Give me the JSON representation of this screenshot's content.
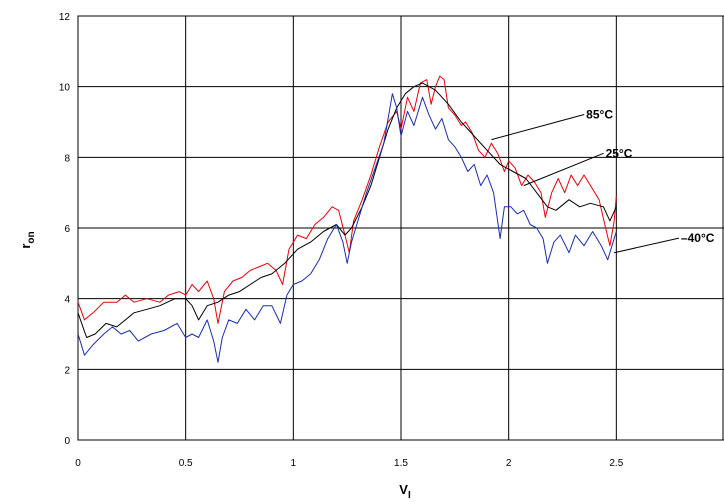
{
  "chart_data": {
    "type": "line",
    "title": "",
    "xlabel": "V",
    "xlabel_sub": "I",
    "ylabel": "r",
    "ylabel_sub": "on",
    "xlim": [
      0,
      3
    ],
    "ylim": [
      0,
      12
    ],
    "xticks": [
      {
        "v": 0,
        "label": "0"
      },
      {
        "v": 0.5,
        "label": "0.5"
      },
      {
        "v": 1,
        "label": "1"
      },
      {
        "v": 1.5,
        "label": "1.5"
      },
      {
        "v": 2,
        "label": "2"
      },
      {
        "v": 2.5,
        "label": "2.5"
      }
    ],
    "yticks": [
      {
        "v": 0,
        "label": "0"
      },
      {
        "v": 2,
        "label": "2"
      },
      {
        "v": 4,
        "label": "4"
      },
      {
        "v": 6,
        "label": "6"
      },
      {
        "v": 8,
        "label": "8"
      },
      {
        "v": 10,
        "label": "10"
      },
      {
        "v": 12,
        "label": "12"
      }
    ],
    "grid": true,
    "legend": "none",
    "series": [
      {
        "name": "85°C",
        "color": "#e8000b",
        "points": [
          [
            0,
            3.9
          ],
          [
            0.03,
            3.4
          ],
          [
            0.07,
            3.6
          ],
          [
            0.12,
            3.9
          ],
          [
            0.18,
            3.9
          ],
          [
            0.22,
            4.1
          ],
          [
            0.26,
            3.9
          ],
          [
            0.32,
            4.0
          ],
          [
            0.38,
            3.9
          ],
          [
            0.42,
            4.1
          ],
          [
            0.47,
            4.2
          ],
          [
            0.5,
            4.1
          ],
          [
            0.53,
            4.4
          ],
          [
            0.56,
            4.2
          ],
          [
            0.6,
            4.5
          ],
          [
            0.63,
            4.0
          ],
          [
            0.65,
            3.3
          ],
          [
            0.68,
            4.2
          ],
          [
            0.72,
            4.5
          ],
          [
            0.76,
            4.6
          ],
          [
            0.8,
            4.8
          ],
          [
            0.84,
            4.9
          ],
          [
            0.88,
            5.0
          ],
          [
            0.92,
            4.8
          ],
          [
            0.95,
            4.4
          ],
          [
            0.98,
            5.4
          ],
          [
            1.02,
            5.8
          ],
          [
            1.06,
            5.7
          ],
          [
            1.1,
            6.1
          ],
          [
            1.14,
            6.3
          ],
          [
            1.18,
            6.6
          ],
          [
            1.21,
            6.5
          ],
          [
            1.24,
            5.8
          ],
          [
            1.26,
            5.3
          ],
          [
            1.28,
            6.2
          ],
          [
            1.32,
            6.8
          ],
          [
            1.36,
            7.5
          ],
          [
            1.4,
            8.3
          ],
          [
            1.44,
            9.0
          ],
          [
            1.48,
            9.3
          ],
          [
            1.5,
            8.8
          ],
          [
            1.53,
            9.7
          ],
          [
            1.56,
            9.3
          ],
          [
            1.59,
            10.1
          ],
          [
            1.62,
            10.2
          ],
          [
            1.64,
            9.5
          ],
          [
            1.66,
            10.0
          ],
          [
            1.68,
            10.3
          ],
          [
            1.7,
            10.2
          ],
          [
            1.72,
            9.4
          ],
          [
            1.75,
            9.2
          ],
          [
            1.78,
            8.9
          ],
          [
            1.8,
            9.0
          ],
          [
            1.83,
            8.7
          ],
          [
            1.86,
            8.2
          ],
          [
            1.89,
            8.0
          ],
          [
            1.92,
            8.4
          ],
          [
            1.95,
            8.1
          ],
          [
            1.98,
            7.6
          ],
          [
            2.0,
            7.9
          ],
          [
            2.03,
            7.7
          ],
          [
            2.06,
            7.2
          ],
          [
            2.09,
            7.5
          ],
          [
            2.12,
            7.3
          ],
          [
            2.15,
            7.0
          ],
          [
            2.17,
            6.3
          ],
          [
            2.2,
            7.0
          ],
          [
            2.23,
            7.4
          ],
          [
            2.26,
            7.0
          ],
          [
            2.29,
            7.5
          ],
          [
            2.32,
            7.2
          ],
          [
            2.35,
            7.5
          ],
          [
            2.38,
            7.2
          ],
          [
            2.42,
            6.8
          ],
          [
            2.45,
            6.0
          ],
          [
            2.47,
            5.5
          ],
          [
            2.49,
            6.2
          ],
          [
            2.5,
            6.9
          ]
        ]
      },
      {
        "name": "25°C",
        "color": "#000000",
        "points": [
          [
            0,
            3.6
          ],
          [
            0.04,
            2.9
          ],
          [
            0.08,
            3.0
          ],
          [
            0.13,
            3.3
          ],
          [
            0.18,
            3.2
          ],
          [
            0.22,
            3.4
          ],
          [
            0.26,
            3.6
          ],
          [
            0.32,
            3.7
          ],
          [
            0.38,
            3.8
          ],
          [
            0.45,
            4.0
          ],
          [
            0.5,
            4.0
          ],
          [
            0.53,
            3.8
          ],
          [
            0.56,
            3.4
          ],
          [
            0.6,
            3.8
          ],
          [
            0.65,
            3.9
          ],
          [
            0.7,
            4.1
          ],
          [
            0.75,
            4.2
          ],
          [
            0.8,
            4.4
          ],
          [
            0.85,
            4.6
          ],
          [
            0.9,
            4.7
          ],
          [
            0.96,
            5.0
          ],
          [
            1.02,
            5.4
          ],
          [
            1.08,
            5.6
          ],
          [
            1.14,
            5.9
          ],
          [
            1.2,
            6.1
          ],
          [
            1.24,
            5.8
          ],
          [
            1.27,
            6.0
          ],
          [
            1.32,
            6.6
          ],
          [
            1.36,
            7.2
          ],
          [
            1.4,
            8.0
          ],
          [
            1.44,
            8.8
          ],
          [
            1.48,
            9.4
          ],
          [
            1.52,
            9.8
          ],
          [
            1.56,
            10.0
          ],
          [
            1.6,
            10.1
          ],
          [
            1.66,
            9.9
          ],
          [
            1.72,
            9.5
          ],
          [
            1.78,
            9.0
          ],
          [
            1.84,
            8.6
          ],
          [
            1.9,
            8.2
          ],
          [
            1.96,
            7.8
          ],
          [
            2.02,
            7.6
          ],
          [
            2.08,
            7.4
          ],
          [
            2.13,
            7.0
          ],
          [
            2.18,
            6.6
          ],
          [
            2.22,
            6.5
          ],
          [
            2.28,
            6.8
          ],
          [
            2.33,
            6.6
          ],
          [
            2.38,
            6.7
          ],
          [
            2.44,
            6.6
          ],
          [
            2.47,
            6.2
          ],
          [
            2.5,
            6.6
          ]
        ]
      },
      {
        "name": "–40°C",
        "color": "#1a2ea8",
        "points": [
          [
            0,
            3.0
          ],
          [
            0.03,
            2.4
          ],
          [
            0.07,
            2.7
          ],
          [
            0.12,
            3.0
          ],
          [
            0.16,
            3.2
          ],
          [
            0.2,
            3.0
          ],
          [
            0.24,
            3.1
          ],
          [
            0.28,
            2.8
          ],
          [
            0.34,
            3.0
          ],
          [
            0.4,
            3.1
          ],
          [
            0.46,
            3.3
          ],
          [
            0.5,
            2.9
          ],
          [
            0.53,
            3.0
          ],
          [
            0.56,
            2.9
          ],
          [
            0.6,
            3.4
          ],
          [
            0.63,
            2.8
          ],
          [
            0.65,
            2.2
          ],
          [
            0.67,
            2.9
          ],
          [
            0.7,
            3.4
          ],
          [
            0.74,
            3.3
          ],
          [
            0.78,
            3.7
          ],
          [
            0.82,
            3.4
          ],
          [
            0.86,
            3.8
          ],
          [
            0.9,
            3.8
          ],
          [
            0.94,
            3.3
          ],
          [
            0.97,
            4.1
          ],
          [
            1.0,
            4.4
          ],
          [
            1.04,
            4.5
          ],
          [
            1.08,
            4.7
          ],
          [
            1.12,
            5.1
          ],
          [
            1.16,
            5.7
          ],
          [
            1.2,
            6.1
          ],
          [
            1.23,
            5.6
          ],
          [
            1.25,
            5.0
          ],
          [
            1.27,
            5.6
          ],
          [
            1.3,
            6.2
          ],
          [
            1.34,
            7.0
          ],
          [
            1.38,
            7.7
          ],
          [
            1.42,
            8.4
          ],
          [
            1.46,
            9.8
          ],
          [
            1.48,
            9.4
          ],
          [
            1.5,
            8.6
          ],
          [
            1.53,
            9.3
          ],
          [
            1.56,
            8.9
          ],
          [
            1.6,
            9.7
          ],
          [
            1.63,
            9.2
          ],
          [
            1.66,
            8.8
          ],
          [
            1.69,
            9.1
          ],
          [
            1.72,
            8.5
          ],
          [
            1.75,
            8.3
          ],
          [
            1.78,
            8.0
          ],
          [
            1.81,
            7.6
          ],
          [
            1.84,
            7.8
          ],
          [
            1.87,
            7.2
          ],
          [
            1.9,
            7.5
          ],
          [
            1.93,
            7.0
          ],
          [
            1.96,
            5.7
          ],
          [
            1.98,
            6.6
          ],
          [
            2.01,
            6.6
          ],
          [
            2.04,
            6.4
          ],
          [
            2.07,
            6.5
          ],
          [
            2.1,
            6.1
          ],
          [
            2.13,
            6.0
          ],
          [
            2.16,
            5.7
          ],
          [
            2.18,
            5.0
          ],
          [
            2.21,
            5.6
          ],
          [
            2.24,
            5.8
          ],
          [
            2.28,
            5.3
          ],
          [
            2.31,
            5.8
          ],
          [
            2.35,
            5.5
          ],
          [
            2.39,
            5.9
          ],
          [
            2.43,
            5.5
          ],
          [
            2.46,
            5.1
          ],
          [
            2.48,
            5.5
          ],
          [
            2.5,
            5.9
          ]
        ]
      }
    ],
    "annotations": [
      {
        "text": "85°C",
        "series": "85°C",
        "label_x": 2.36,
        "label_y": 9.1,
        "anchor_x": 1.92,
        "anchor_y": 8.5
      },
      {
        "text": "25°C",
        "series": "25°C",
        "label_x": 2.45,
        "label_y": 8.0,
        "anchor_x": 2.07,
        "anchor_y": 7.2
      },
      {
        "text": "–40°C",
        "series": "–40°C",
        "label_x": 2.8,
        "label_y": 5.6,
        "anchor_x": 2.49,
        "anchor_y": 5.3
      }
    ]
  }
}
